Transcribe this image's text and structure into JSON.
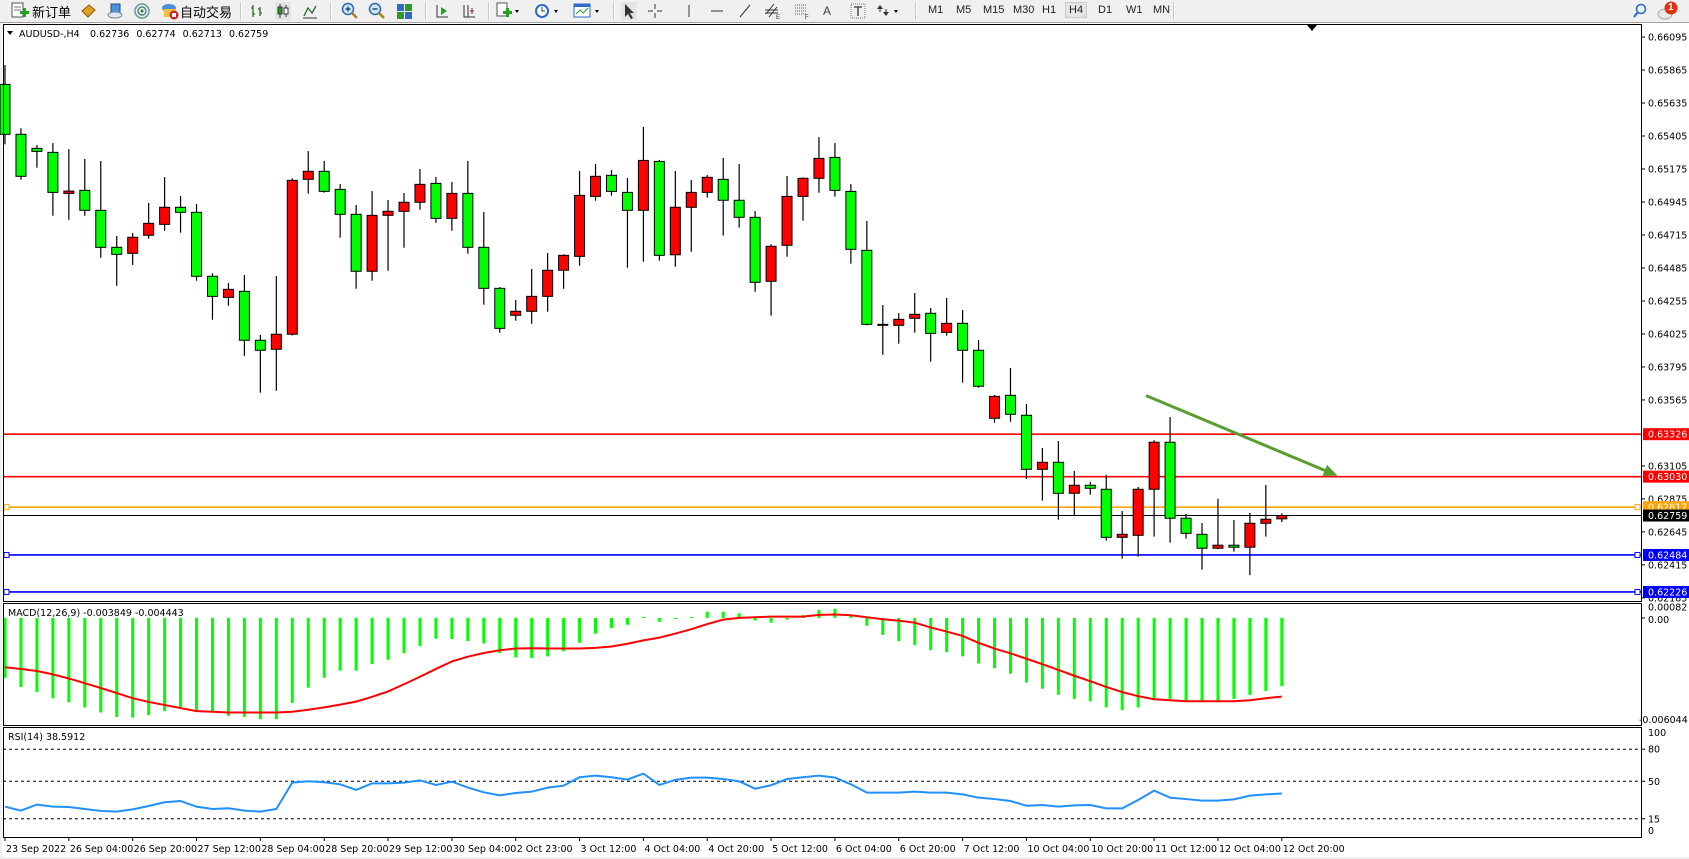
{
  "toolbar": {
    "new_order_label": "新订单",
    "auto_trading_label": "自动交易",
    "timeframes": [
      "M1",
      "M5",
      "M15",
      "M30",
      "H1",
      "H4",
      "D1",
      "W1",
      "MN"
    ],
    "active_timeframe": "H4",
    "notification_count": "1",
    "icons": [
      "new-order-icon",
      "strategy-book-icon",
      "market-server-icon",
      "signals-icon",
      "auto-trading-icon",
      "bar-chart-icon",
      "candlestick-icon",
      "line-chart-icon",
      "zoom-in-icon",
      "zoom-out-icon",
      "tile-windows-icon",
      "auto-scroll-icon",
      "chart-shift-icon",
      "indicators-icon",
      "periods-icon",
      "templates-icon",
      "cursor-icon",
      "crosshair-icon",
      "vertical-line-icon",
      "horizontal-line-icon",
      "trendline-icon",
      "equidistant-channel-icon",
      "fibonacci-icon",
      "text-icon",
      "text-label-icon",
      "arrows-icon",
      "search-icon",
      "notification-icon"
    ]
  },
  "header": {
    "symbol": "AUDUSD-,H4",
    "open": "0.62736",
    "high": "0.62774",
    "low": "0.62713",
    "close": "0.62759"
  },
  "colors": {
    "bull_candle": "#ff0000",
    "bear_candle": "#00ff00",
    "macd_histogram": "#00ff00",
    "macd_signal": "#ff0000",
    "rsi_line": "#1e90ff",
    "trend_arrow": "#5a9e32"
  },
  "chart_data": {
    "type": "candlestick",
    "symbol": "AUDUSD-",
    "timeframe": "H4",
    "ylim": [
      0.62163,
      0.66186
    ],
    "price_ticks": [
      "0.66095",
      "0.65865",
      "0.65635",
      "0.65405",
      "0.65175",
      "0.64945",
      "0.64715",
      "0.64485",
      "0.64255",
      "0.64025",
      "0.63795",
      "0.63565",
      "0.63105",
      "0.62875",
      "0.62645",
      "0.62415",
      "0.62185"
    ],
    "time_ticks": [
      {
        "candle": 0,
        "label": "23 Sep 2022"
      },
      {
        "candle": 4,
        "label": "26 Sep 04:00"
      },
      {
        "candle": 8,
        "label": "26 Sep 20:00"
      },
      {
        "candle": 12,
        "label": "27 Sep 12:00"
      },
      {
        "candle": 16,
        "label": "28 Sep 04:00"
      },
      {
        "candle": 20,
        "label": "28 Sep 20:00"
      },
      {
        "candle": 24,
        "label": "29 Sep 12:00"
      },
      {
        "candle": 28,
        "label": "30 Sep 04:00"
      },
      {
        "candle": 32,
        "label": "2 Oct 23:00"
      },
      {
        "candle": 36,
        "label": "3 Oct 12:00"
      },
      {
        "candle": 40,
        "label": "4 Oct 04:00"
      },
      {
        "candle": 44,
        "label": "4 Oct 20:00"
      },
      {
        "candle": 48,
        "label": "5 Oct 12:00"
      },
      {
        "candle": 52,
        "label": "6 Oct 04:00"
      },
      {
        "candle": 56,
        "label": "6 Oct 20:00"
      },
      {
        "candle": 60,
        "label": "7 Oct 12:00"
      },
      {
        "candle": 64,
        "label": "10 Oct 04:00"
      },
      {
        "candle": 68,
        "label": "10 Oct 20:00"
      },
      {
        "candle": 72,
        "label": "11 Oct 12:00"
      },
      {
        "candle": 76,
        "label": "12 Oct 04:00"
      },
      {
        "candle": 80,
        "label": "12 Oct 20:00"
      }
    ],
    "ohlc_fields": [
      "open",
      "high",
      "low",
      "close"
    ],
    "candles": [
      [
        0.65765,
        0.659,
        0.65347,
        0.65417
      ],
      [
        0.65417,
        0.65459,
        0.651,
        0.65124
      ],
      [
        0.65319,
        0.65342,
        0.65184,
        0.65298
      ],
      [
        0.65291,
        0.65356,
        0.64849,
        0.65012
      ],
      [
        0.65005,
        0.65314,
        0.64821,
        0.65021
      ],
      [
        0.65026,
        0.65245,
        0.64849,
        0.64887
      ],
      [
        0.64887,
        0.65231,
        0.64556,
        0.64629
      ],
      [
        0.64629,
        0.64708,
        0.64361,
        0.6458
      ],
      [
        0.64587,
        0.64729,
        0.64506,
        0.64699
      ],
      [
        0.64713,
        0.64938,
        0.64689,
        0.64796
      ],
      [
        0.64789,
        0.65119,
        0.64745,
        0.64908
      ],
      [
        0.64908,
        0.64987,
        0.64731,
        0.64873
      ],
      [
        0.64873,
        0.64931,
        0.64396,
        0.64427
      ],
      [
        0.64427,
        0.64448,
        0.64124,
        0.64287
      ],
      [
        0.6428,
        0.6438,
        0.64222,
        0.64336
      ],
      [
        0.64322,
        0.64436,
        0.63873,
        0.63981
      ],
      [
        0.63981,
        0.64018,
        0.63615,
        0.63911
      ],
      [
        0.63918,
        0.64429,
        0.63629,
        0.64023
      ],
      [
        0.64023,
        0.6511,
        0.64015,
        0.65096
      ],
      [
        0.65103,
        0.653,
        0.65003,
        0.65159
      ],
      [
        0.65159,
        0.65231,
        0.6501,
        0.65019
      ],
      [
        0.65033,
        0.6507,
        0.64696,
        0.64859
      ],
      [
        0.64859,
        0.64924,
        0.6434,
        0.64462
      ],
      [
        0.64462,
        0.65021,
        0.64396,
        0.64852
      ],
      [
        0.64852,
        0.64959,
        0.64466,
        0.6488
      ],
      [
        0.6488,
        0.65008,
        0.64626,
        0.64943
      ],
      [
        0.64943,
        0.65175,
        0.64891,
        0.65068
      ],
      [
        0.65075,
        0.65119,
        0.648,
        0.64831
      ],
      [
        0.64831,
        0.65084,
        0.64745,
        0.65005
      ],
      [
        0.65005,
        0.65231,
        0.64584,
        0.64629
      ],
      [
        0.64629,
        0.64875,
        0.64229,
        0.64343
      ],
      [
        0.64343,
        0.64352,
        0.64034,
        0.64064
      ],
      [
        0.64155,
        0.64262,
        0.64117,
        0.64183
      ],
      [
        0.64183,
        0.64478,
        0.64096,
        0.64287
      ],
      [
        0.64287,
        0.64589,
        0.6418,
        0.64469
      ],
      [
        0.64469,
        0.6458,
        0.6434,
        0.64573
      ],
      [
        0.64566,
        0.65161,
        0.64501,
        0.64991
      ],
      [
        0.64984,
        0.6521,
        0.64954,
        0.65124
      ],
      [
        0.65131,
        0.65168,
        0.64989,
        0.65019
      ],
      [
        0.65012,
        0.65112,
        0.64487,
        0.64887
      ],
      [
        0.64887,
        0.65468,
        0.64529,
        0.65235
      ],
      [
        0.65228,
        0.65238,
        0.64536,
        0.64573
      ],
      [
        0.64577,
        0.65161,
        0.64494,
        0.64908
      ],
      [
        0.64908,
        0.65098,
        0.64598,
        0.65012
      ],
      [
        0.65012,
        0.65133,
        0.64975,
        0.65117
      ],
      [
        0.65103,
        0.65252,
        0.6471,
        0.64957
      ],
      [
        0.64957,
        0.6521,
        0.64766,
        0.64838
      ],
      [
        0.64838,
        0.64882,
        0.64319,
        0.64385
      ],
      [
        0.64392,
        0.6465,
        0.64152,
        0.64636
      ],
      [
        0.64643,
        0.65126,
        0.64563,
        0.64984
      ],
      [
        0.64984,
        0.65117,
        0.64814,
        0.6511
      ],
      [
        0.6511,
        0.65398,
        0.6501,
        0.65249
      ],
      [
        0.65256,
        0.65356,
        0.64982,
        0.65026
      ],
      [
        0.65019,
        0.6507,
        0.64515,
        0.64615
      ],
      [
        0.64608,
        0.64812,
        0.64085,
        0.64092
      ],
      [
        0.64092,
        0.64227,
        0.6388,
        0.64087
      ],
      [
        0.64085,
        0.64171,
        0.63957,
        0.64127
      ],
      [
        0.64134,
        0.6431,
        0.64034,
        0.64162
      ],
      [
        0.64169,
        0.64206,
        0.63832,
        0.64029
      ],
      [
        0.64036,
        0.64276,
        0.64013,
        0.64099
      ],
      [
        0.64099,
        0.64192,
        0.63685,
        0.63911
      ],
      [
        0.63911,
        0.63983,
        0.6365,
        0.6366
      ],
      [
        0.63437,
        0.63599,
        0.63406,
        0.6359
      ],
      [
        0.63597,
        0.63788,
        0.63413,
        0.63465
      ],
      [
        0.63458,
        0.63537,
        0.63014,
        0.63081
      ],
      [
        0.63081,
        0.6323,
        0.62863,
        0.6313
      ],
      [
        0.6313,
        0.63279,
        0.6273,
        0.62914
      ],
      [
        0.62914,
        0.6307,
        0.62756,
        0.6297
      ],
      [
        0.6297,
        0.62993,
        0.62904,
        0.62949
      ],
      [
        0.62942,
        0.63042,
        0.62584,
        0.62607
      ],
      [
        0.62607,
        0.62791,
        0.62458,
        0.62628
      ],
      [
        0.62621,
        0.62958,
        0.62472,
        0.62942
      ],
      [
        0.62942,
        0.63284,
        0.62612,
        0.6327
      ],
      [
        0.6327,
        0.63446,
        0.6257,
        0.6274
      ],
      [
        0.6274,
        0.6277,
        0.62598,
        0.62635
      ],
      [
        0.62628,
        0.62707,
        0.62382,
        0.62531
      ],
      [
        0.62531,
        0.62876,
        0.62525,
        0.62552
      ],
      [
        0.62552,
        0.62728,
        0.62507,
        0.62538
      ],
      [
        0.62538,
        0.62777,
        0.62343,
        0.62705
      ],
      [
        0.62705,
        0.62972,
        0.62612,
        0.62733
      ],
      [
        0.62736,
        0.62774,
        0.62713,
        0.62759
      ]
    ],
    "horizontal_lines": [
      {
        "price": "0.63326",
        "color": "#ff0000",
        "selected": false
      },
      {
        "price": "0.63030",
        "color": "#ff0000",
        "selected": false
      },
      {
        "price": "0.62817",
        "color": "#ffa500",
        "selected": true
      },
      {
        "price": "0.62484",
        "color": "#0000ff",
        "selected": true
      },
      {
        "price": "0.62226",
        "color": "#0000ff",
        "selected": true
      }
    ],
    "bid_line": {
      "price": "0.62759",
      "color": "#000000"
    },
    "arrow": {
      "from": {
        "candle": 71.5,
        "price": 0.63595
      },
      "to": {
        "candle": 83.5,
        "price": 0.63036
      }
    },
    "macd": {
      "label": "MACD(12,26,9) -0.003849 -0.004443",
      "ylim": [
        -0.006044,
        0.00082
      ],
      "axis_labels": [
        "0.00082",
        "0.00",
        "-0.006044"
      ],
      "histogram": [
        -0.003379,
        -0.003898,
        -0.004186,
        -0.004531,
        -0.004762,
        -0.00505,
        -0.005338,
        -0.005587,
        -0.005626,
        -0.005491,
        -0.005261,
        -0.00505,
        -0.005299,
        -0.005299,
        -0.00553,
        -0.005587,
        -0.005722,
        -0.005722,
        -0.0048,
        -0.003936,
        -0.003379,
        -0.002976,
        -0.002976,
        -0.002611,
        -0.002362,
        -0.001997,
        -0.001594,
        -0.001171,
        -0.00119,
        -0.001306,
        -0.00144,
        -0.001978,
        -0.002227,
        -0.002266,
        -0.00217,
        -0.001882,
        -0.001402,
        -0.000883,
        -0.000576,
        -0.000384,
        5.8e-05,
        -0.000211,
        -5.8e-05,
        5.8e-05,
        0.000346,
        0.000346,
        0.000269,
        -0.000154,
        -0.000269,
        -9.6e-05,
        0.000154,
        0.000461,
        0.000518,
        0.000192,
        -0.000442,
        -0.00096,
        -0.001306,
        -0.001536,
        -0.001824,
        -0.001939,
        -0.00217,
        -0.002573,
        -0.002842,
        -0.003149,
        -0.003648,
        -0.003994,
        -0.004339,
        -0.00457,
        -0.004704,
        -0.00505,
        -0.005203,
        -0.00505,
        -0.00457,
        -0.00457,
        -0.004666,
        -0.004666,
        -0.004666,
        -0.00457,
        -0.004339,
        -0.004128,
        -0.003849
      ],
      "signal": [
        -0.002784,
        -0.00288,
        -0.002995,
        -0.003187,
        -0.003418,
        -0.003686,
        -0.003955,
        -0.004243,
        -0.004531,
        -0.004742,
        -0.004915,
        -0.005088,
        -0.005261,
        -0.005299,
        -0.005338,
        -0.005338,
        -0.005338,
        -0.005338,
        -0.005299,
        -0.005184,
        -0.00505,
        -0.004896,
        -0.004723,
        -0.004454,
        -0.004147,
        -0.003744,
        -0.003322,
        -0.00288,
        -0.002458,
        -0.002189,
        -0.001978,
        -0.001824,
        -0.001728,
        -0.001709,
        -0.001728,
        -0.001728,
        -0.001728,
        -0.00169,
        -0.001613,
        -0.001459,
        -0.001267,
        -0.001114,
        -0.000883,
        -0.000634,
        -0.000346,
        -9.6e-05,
        0.0,
        3.8e-05,
        7.7e-05,
        7.7e-05,
        7.7e-05,
        0.000173,
        0.000192,
        0.000154,
        3.8e-05,
        -7.7e-05,
        -0.000154,
        -0.000269,
        -0.000538,
        -0.000768,
        -0.001018,
        -0.001402,
        -0.001728,
        -0.001997,
        -0.002304,
        -0.002611,
        -0.002938,
        -0.003264,
        -0.003571,
        -0.003898,
        -0.004186,
        -0.004416,
        -0.004589,
        -0.004646,
        -0.004704,
        -0.004704,
        -0.004704,
        -0.004704,
        -0.004646,
        -0.004531,
        -0.004443
      ]
    },
    "rsi": {
      "label": "RSI(14) 38.5912",
      "ylim": [
        0,
        100
      ],
      "levels": [
        80,
        50,
        15
      ],
      "axis_labels": [
        "100",
        "80",
        "50",
        "15",
        "0"
      ],
      "values": [
        26.3,
        22.6,
        28.2,
        26.3,
        26.0,
        24.1,
        22.3,
        21.7,
        23.8,
        26.9,
        30.4,
        31.6,
        26.3,
        24.1,
        24.8,
        22.6,
        21.7,
        24.1,
        48.8,
        50.0,
        49.1,
        47.2,
        41.9,
        48.1,
        48.1,
        48.8,
        50.9,
        46.6,
        49.7,
        44.1,
        39.7,
        36.9,
        39.1,
        40.3,
        44.1,
        45.9,
        53.8,
        55.3,
        53.8,
        51.6,
        57.2,
        46.6,
        51.3,
        53.4,
        53.4,
        52.2,
        50.0,
        43.1,
        46.3,
        52.2,
        53.8,
        55.3,
        53.4,
        47.2,
        39.4,
        39.4,
        39.4,
        40.3,
        39.4,
        39.4,
        37.8,
        34.7,
        33.4,
        31.6,
        27.2,
        27.8,
        26.3,
        27.5,
        27.8,
        24.7,
        24.7,
        32.5,
        41.3,
        34.7,
        33.4,
        31.9,
        31.9,
        33.1,
        36.6,
        37.8,
        38.6
      ]
    }
  }
}
